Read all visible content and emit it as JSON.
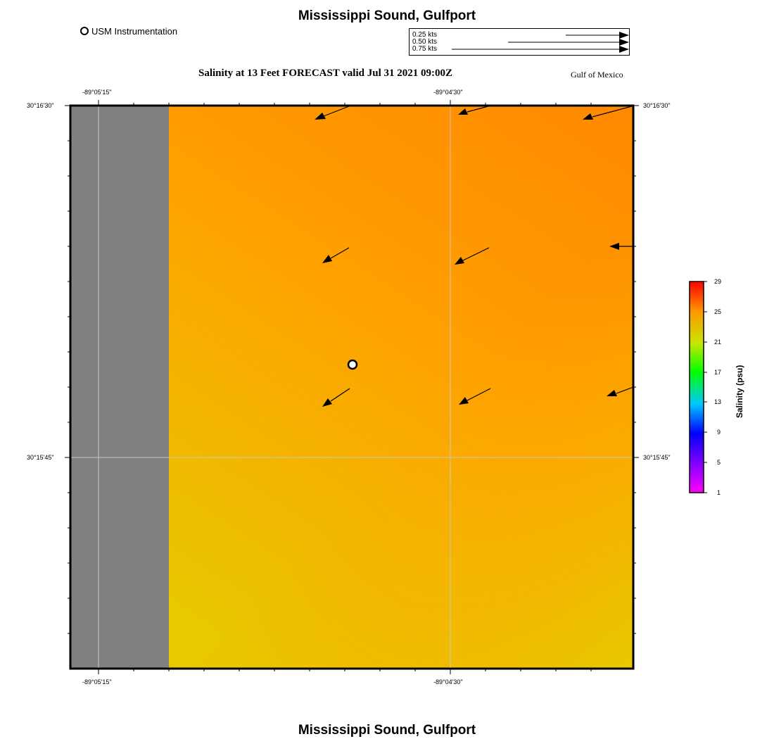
{
  "header": {
    "title": "Mississippi Sound, Gulfport",
    "subtitle": "Salinity at 13 Feet FORECAST valid Jul 31 2021 09:00Z",
    "region": "Gulf of Mexico",
    "footer_title": "Mississippi Sound, Gulfport"
  },
  "legend": {
    "marker_label": "USM Instrumentation"
  },
  "current_scale": {
    "rows": [
      {
        "label": "0.25 kts",
        "speed_kts": 0.25
      },
      {
        "label": "0.50 kts",
        "speed_kts": 0.5
      },
      {
        "label": "0.75 kts",
        "speed_kts": 0.75
      }
    ]
  },
  "map": {
    "lon_ticks": [
      "-89°05'15\"",
      "-89°04'30\""
    ],
    "lat_ticks": [
      "30°16'30\"",
      "30°15'45\""
    ],
    "colors": {
      "land": "#808080",
      "water_top_right": "#ff8800",
      "water_mid": "#ffa000",
      "water_bottom_right": "#e6cc00",
      "marker_fill": "#ffffff"
    }
  },
  "colorbar": {
    "title": "Salinity (psu)",
    "ticks": [
      "29",
      "25",
      "21",
      "17",
      "13",
      "9",
      "5",
      "1"
    ],
    "range": [
      1,
      29
    ]
  }
}
